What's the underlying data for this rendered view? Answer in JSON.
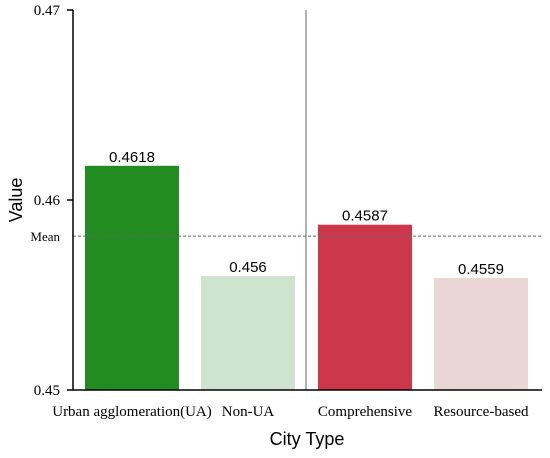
{
  "chart_data": {
    "type": "bar",
    "categories": [
      "Urban agglomeration(UA)",
      "Non-UA",
      "Comprehensive",
      "Resource-based"
    ],
    "values": [
      0.4618,
      0.456,
      0.4587,
      0.4559
    ],
    "value_labels": [
      "0.4618",
      "0.456",
      "0.4587",
      "0.4559"
    ],
    "bar_colors": [
      "#228b22",
      "#cfe4cf",
      "#cd374c",
      "#ead6d4"
    ],
    "xlabel": "City Type",
    "ylabel": "Value",
    "ylim": [
      0.45,
      0.47
    ],
    "yticks": [
      0.45,
      0.46,
      0.47
    ],
    "ytick_labels": [
      "0.45",
      "0.46",
      "0.47"
    ],
    "mean_value": 0.4581,
    "mean_label": "Mean",
    "grid": false,
    "group_divider": "between Non-UA and Comprehensive"
  }
}
